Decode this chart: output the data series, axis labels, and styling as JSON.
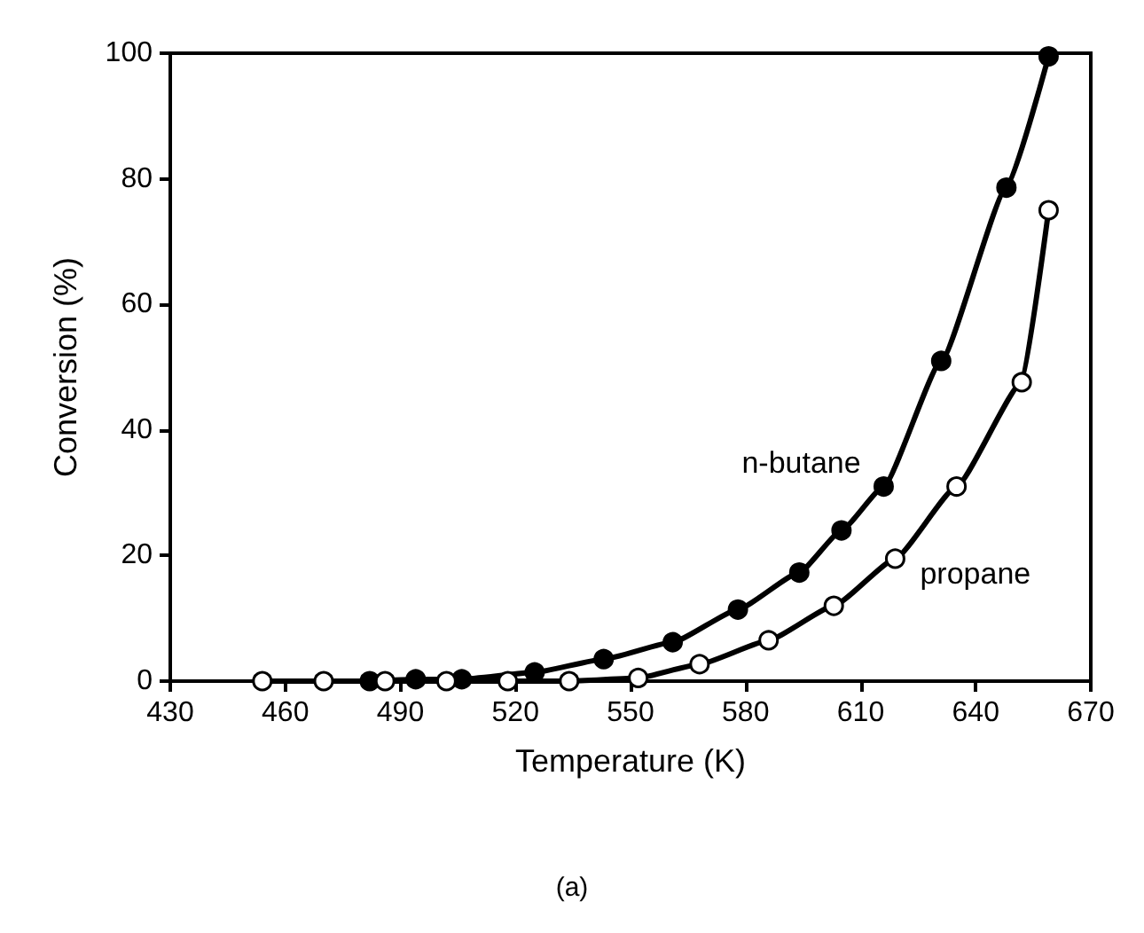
{
  "chart_data": {
    "type": "line",
    "xlabel": "Temperature (K)",
    "ylabel": "Conversion (%)",
    "xlim": [
      430,
      670
    ],
    "xticks": [
      430,
      460,
      490,
      520,
      550,
      580,
      610,
      640,
      670
    ],
    "ylim": [
      0,
      100
    ],
    "yticks": [
      0,
      20,
      40,
      60,
      80,
      100
    ],
    "grid": false,
    "legend": false,
    "marker": "circle",
    "line_style": "solid",
    "annotations": [
      "(a)"
    ],
    "series": [
      {
        "name": "n-butane",
        "color": "#000000",
        "x": [
          482,
          494,
          506,
          525,
          543,
          561,
          578,
          594,
          605,
          616,
          631,
          648,
          659
        ],
        "values": [
          0,
          0.3,
          0.3,
          1.4,
          3.5,
          6.2,
          11.4,
          17.3,
          24,
          31,
          51,
          78.6,
          99.5
        ]
      },
      {
        "name": "propane",
        "color": "#000000",
        "x": [
          454,
          470,
          486,
          502,
          518,
          534,
          552,
          568,
          586,
          603,
          619,
          635,
          652,
          659
        ],
        "values": [
          0,
          0,
          0,
          0,
          0,
          0,
          0.5,
          2.7,
          6.5,
          12,
          19.5,
          31,
          47.6,
          75
        ]
      }
    ]
  }
}
